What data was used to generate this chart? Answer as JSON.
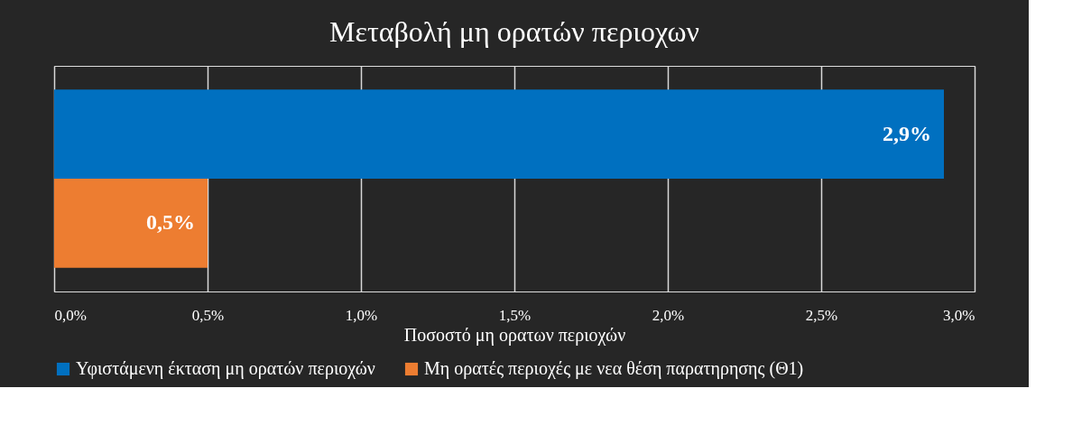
{
  "chart_data": {
    "type": "bar",
    "orientation": "horizontal",
    "title": "Μεταβολή μη ορατών περιοχων",
    "xlabel": "Ποσοστό μη ορατων περιοχών",
    "categories": [
      null
    ],
    "series": [
      {
        "name": "Υφιστάμενη έκταση μη ορατών περιοχών",
        "color": "#0070c0",
        "values": [
          2.9
        ],
        "value_labels": [
          "2,9%"
        ]
      },
      {
        "name": "Μη ορατές περιοχές με νεα θέση παρατηρησης (Θ1)",
        "color": "#ed7d31",
        "values": [
          0.5
        ],
        "value_labels": [
          "0,5%"
        ]
      }
    ],
    "xlim": [
      0,
      3
    ],
    "xticks": [
      {
        "value": 0,
        "label": "0,0%"
      },
      {
        "value": 0.5,
        "label": "0,5%"
      },
      {
        "value": 1,
        "label": "1,0%"
      },
      {
        "value": 1.5,
        "label": "1,5%"
      },
      {
        "value": 2,
        "label": "2,0%"
      },
      {
        "value": 2.5,
        "label": "2,5%"
      },
      {
        "value": 3,
        "label": "3,0%"
      }
    ],
    "grid": "x",
    "legend": "bottom"
  }
}
